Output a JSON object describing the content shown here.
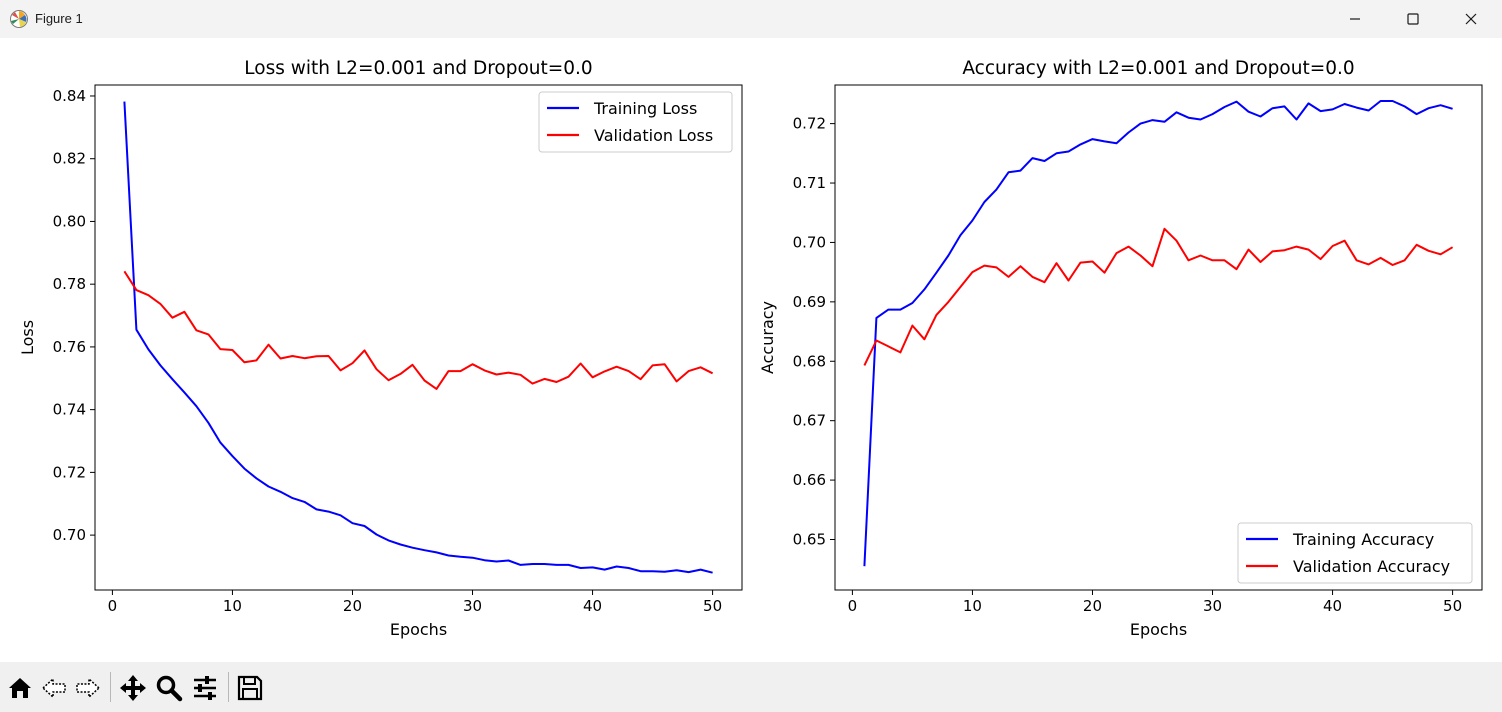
{
  "window": {
    "title": "Figure 1",
    "controls": [
      "minimize",
      "maximize",
      "close"
    ]
  },
  "toolbar": {
    "buttons": [
      {
        "name": "home-icon",
        "tooltip": "Reset original view"
      },
      {
        "name": "back-icon",
        "tooltip": "Back to previous view"
      },
      {
        "name": "forward-icon",
        "tooltip": "Forward to next view"
      },
      {
        "name": "pan-icon",
        "tooltip": "Pan axes"
      },
      {
        "name": "zoom-icon",
        "tooltip": "Zoom to rectangle"
      },
      {
        "name": "configure-icon",
        "tooltip": "Configure subplots"
      },
      {
        "name": "save-icon",
        "tooltip": "Save the figure"
      }
    ]
  },
  "chart_data": [
    {
      "type": "line",
      "title": "Loss with L2=0.001 and Dropout=0.0",
      "xlabel": "Epochs",
      "ylabel": "Loss",
      "xlim": [
        -1.45,
        52.45
      ],
      "ylim": [
        0.6825,
        0.8435
      ],
      "xticks": [
        0,
        10,
        20,
        30,
        40,
        50
      ],
      "yticks": [
        0.7,
        0.72,
        0.74,
        0.76,
        0.78,
        0.8,
        0.82,
        0.84
      ],
      "yticklabels": [
        "0.70",
        "0.72",
        "0.74",
        "0.76",
        "0.78",
        "0.80",
        "0.82",
        "0.84"
      ],
      "legend_loc": "upper right",
      "x": [
        1,
        2,
        3,
        4,
        5,
        6,
        7,
        8,
        9,
        10,
        11,
        12,
        13,
        14,
        15,
        16,
        17,
        18,
        19,
        20,
        21,
        22,
        23,
        24,
        25,
        26,
        27,
        28,
        29,
        30,
        31,
        32,
        33,
        34,
        35,
        36,
        37,
        38,
        39,
        40,
        41,
        42,
        43,
        44,
        45,
        46,
        47,
        48,
        49,
        50
      ],
      "series": [
        {
          "name": "Training Loss",
          "color": "#0000ff",
          "values": [
            0.8382,
            0.7655,
            0.7592,
            0.7541,
            0.7497,
            0.7455,
            0.7411,
            0.7358,
            0.7295,
            0.7252,
            0.7212,
            0.7181,
            0.7155,
            0.7138,
            0.7118,
            0.7106,
            0.7082,
            0.7075,
            0.7063,
            0.7038,
            0.7029,
            0.7002,
            0.6983,
            0.697,
            0.696,
            0.6952,
            0.6945,
            0.6935,
            0.6931,
            0.6928,
            0.692,
            0.6916,
            0.6919,
            0.6905,
            0.6908,
            0.6908,
            0.6905,
            0.6905,
            0.6895,
            0.6897,
            0.689,
            0.69,
            0.6895,
            0.6885,
            0.6885,
            0.6883,
            0.6888,
            0.6882,
            0.689,
            0.688
          ]
        },
        {
          "name": "Validation Loss",
          "color": "#ff0000",
          "values": [
            0.7841,
            0.7781,
            0.7765,
            0.7737,
            0.7693,
            0.7712,
            0.7653,
            0.764,
            0.7593,
            0.759,
            0.7551,
            0.7557,
            0.7607,
            0.7563,
            0.7571,
            0.7564,
            0.757,
            0.7571,
            0.7525,
            0.7548,
            0.7589,
            0.7529,
            0.7494,
            0.7514,
            0.7543,
            0.7493,
            0.7466,
            0.7523,
            0.7523,
            0.7545,
            0.7525,
            0.7512,
            0.7518,
            0.7511,
            0.7483,
            0.7498,
            0.7488,
            0.7505,
            0.7547,
            0.7503,
            0.7522,
            0.7537,
            0.7523,
            0.7497,
            0.7541,
            0.7545,
            0.749,
            0.7523,
            0.7535,
            0.7516
          ]
        }
      ]
    },
    {
      "type": "line",
      "title": "Accuracy with L2=0.001 and Dropout=0.0",
      "xlabel": "Epochs",
      "ylabel": "Accuracy",
      "xlim": [
        -1.45,
        52.45
      ],
      "ylim": [
        0.6415,
        0.7265
      ],
      "xticks": [
        0,
        10,
        20,
        30,
        40,
        50
      ],
      "yticks": [
        0.65,
        0.66,
        0.67,
        0.68,
        0.69,
        0.7,
        0.71,
        0.72
      ],
      "yticklabels": [
        "0.65",
        "0.66",
        "0.67",
        "0.68",
        "0.69",
        "0.70",
        "0.71",
        "0.72"
      ],
      "legend_loc": "lower right",
      "x": [
        1,
        2,
        3,
        4,
        5,
        6,
        7,
        8,
        9,
        10,
        11,
        12,
        13,
        14,
        15,
        16,
        17,
        18,
        19,
        20,
        21,
        22,
        23,
        24,
        25,
        26,
        27,
        28,
        29,
        30,
        31,
        32,
        33,
        34,
        35,
        36,
        37,
        38,
        39,
        40,
        41,
        42,
        43,
        44,
        45,
        46,
        47,
        48,
        49,
        50
      ],
      "series": [
        {
          "name": "Training Accuracy",
          "color": "#0000ff",
          "values": [
            0.6455,
            0.6873,
            0.6887,
            0.6887,
            0.6898,
            0.6921,
            0.6949,
            0.6978,
            0.7012,
            0.7037,
            0.7068,
            0.7089,
            0.7118,
            0.7121,
            0.7142,
            0.7137,
            0.715,
            0.7153,
            0.7165,
            0.7174,
            0.717,
            0.7167,
            0.7185,
            0.72,
            0.7206,
            0.7203,
            0.7219,
            0.721,
            0.7207,
            0.7216,
            0.7228,
            0.7237,
            0.722,
            0.7212,
            0.7226,
            0.7229,
            0.7207,
            0.7234,
            0.7221,
            0.7224,
            0.7233,
            0.7227,
            0.7222,
            0.7238,
            0.7238,
            0.7229,
            0.7216,
            0.7226,
            0.7231,
            0.7225
          ]
        },
        {
          "name": "Validation Accuracy",
          "color": "#ff0000",
          "values": [
            0.6793,
            0.6835,
            0.6825,
            0.6815,
            0.686,
            0.6837,
            0.6878,
            0.69,
            0.6925,
            0.695,
            0.6961,
            0.6958,
            0.6942,
            0.696,
            0.6942,
            0.6933,
            0.6965,
            0.6936,
            0.6966,
            0.6968,
            0.6949,
            0.6982,
            0.6993,
            0.6978,
            0.696,
            0.7023,
            0.7003,
            0.697,
            0.6978,
            0.697,
            0.697,
            0.6955,
            0.6988,
            0.6967,
            0.6985,
            0.6987,
            0.6993,
            0.6988,
            0.6972,
            0.6994,
            0.7003,
            0.697,
            0.6963,
            0.6974,
            0.6962,
            0.697,
            0.6996,
            0.6986,
            0.698,
            0.6992
          ]
        }
      ]
    }
  ]
}
